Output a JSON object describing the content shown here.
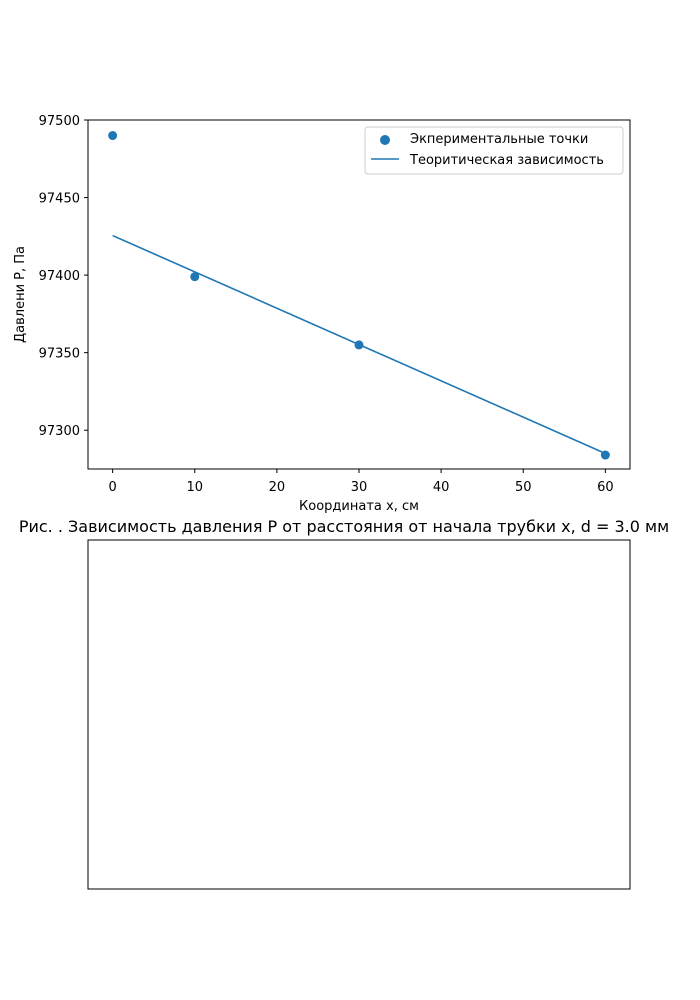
{
  "chart_data": [
    {
      "type": "scatter",
      "title": "",
      "caption": "Рис.  . Зависимость давления P от расстояния от начала трубки x, d = 3.0 мм",
      "xlabel": "Координата x, см",
      "ylabel": "Давлени P, Па",
      "xlim": [
        -3,
        63
      ],
      "ylim": [
        97275,
        97500
      ],
      "xticks": [
        0,
        10,
        20,
        30,
        40,
        50,
        60
      ],
      "yticks": [
        97300,
        97350,
        97400,
        97450,
        97500
      ],
      "grid": false,
      "legend_position": "top-right",
      "series": [
        {
          "name": "Экпериментальные точки",
          "kind": "scatter",
          "color": "#1f77b4",
          "x": [
            0,
            10,
            30,
            60
          ],
          "y": [
            97490,
            97399,
            97355,
            97284
          ]
        },
        {
          "name": "Теоритическая зависимость",
          "kind": "line",
          "color": "#1f77b4",
          "x": [
            0,
            60
          ],
          "y": [
            97425.5,
            97285
          ]
        }
      ]
    },
    {
      "type": "empty"
    }
  ]
}
